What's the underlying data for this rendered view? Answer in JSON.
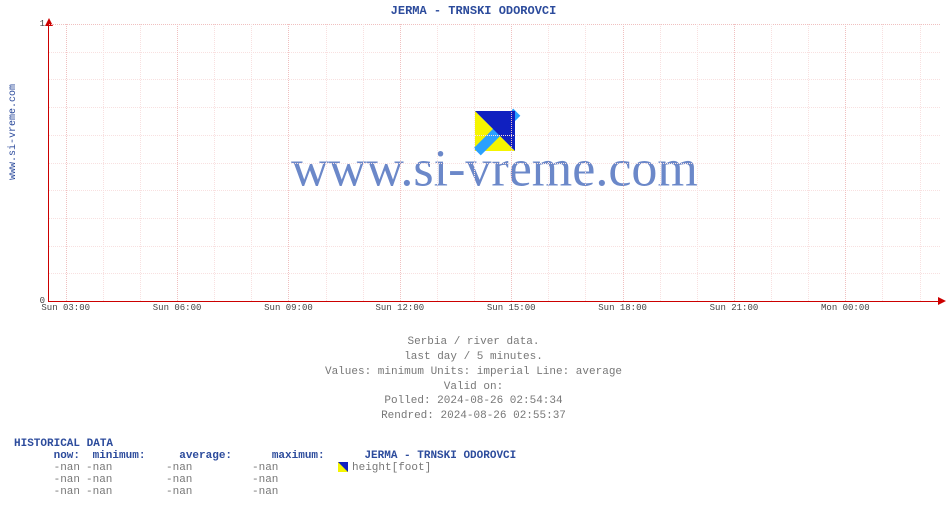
{
  "side_label": "www.si-vreme.com",
  "chart": {
    "title": "JERMA -  TRNSKI ODOROVCI",
    "watermark": "www.si-vreme.com",
    "title_color": "#2c4b9c",
    "axis_color": "#cc0000",
    "grid_color": "#f0c0c0",
    "grid_minor_color": "#f8e0e0",
    "background_color": "#ffffff",
    "watermark_color": "#6b88c9",
    "watermark_fontsize": 52,
    "title_fontsize": 12,
    "ylim": [
      0,
      1
    ],
    "yticks": [
      0,
      1
    ],
    "yticks_minor": [
      0.1,
      0.2,
      0.3,
      0.4,
      0.5,
      0.6,
      0.7,
      0.8,
      0.9
    ],
    "xticks": [
      "Sun 03:00",
      "Sun 06:00",
      "Sun 09:00",
      "Sun 12:00",
      "Sun 15:00",
      "Sun 18:00",
      "Sun 21:00",
      "Mon 00:00"
    ],
    "series": []
  },
  "info": {
    "line1": "Serbia / river data.",
    "line2": "last day / 5 minutes.",
    "line3": "Values: minimum  Units: imperial  Line: average",
    "line4": "Valid on:",
    "line5": "Polled: 2024-08-26 02:54:34",
    "line6": "Rendred: 2024-08-26 02:55:37"
  },
  "hist": {
    "title": "HISTORICAL DATA",
    "headers": {
      "now": "now:",
      "min": "minimum:",
      "avg": "average:",
      "max": "maximum:",
      "series": "JERMA -  TRNSKI ODOROVCI"
    },
    "series_label": "height[foot]",
    "swatch_colors": [
      "#f5f500",
      "#1020c0"
    ],
    "rows": [
      {
        "now": "-nan",
        "min": "-nan",
        "avg": "-nan",
        "max": "-nan"
      },
      {
        "now": "-nan",
        "min": "-nan",
        "avg": "-nan",
        "max": "-nan"
      },
      {
        "now": "-nan",
        "min": "-nan",
        "avg": "-nan",
        "max": "-nan"
      }
    ]
  }
}
